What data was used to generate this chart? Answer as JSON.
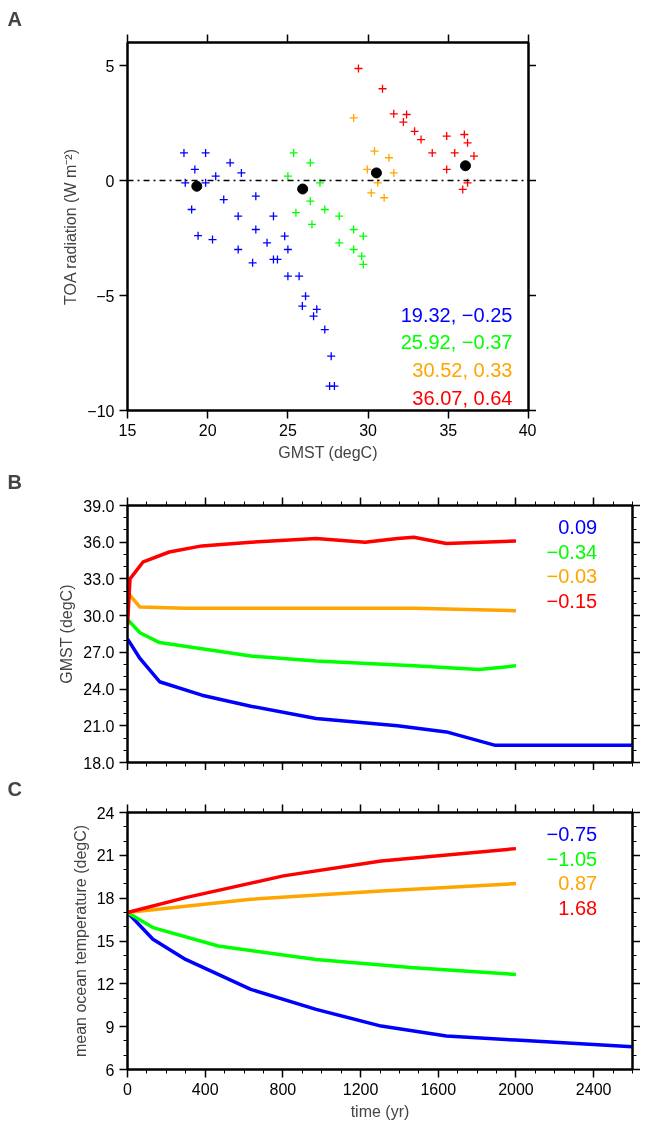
{
  "chart_data": [
    {
      "type": "scatter",
      "title": "A",
      "xlabel": "GMST (degC)",
      "ylabel": "TOA radiation (W m⁻²)",
      "xlim": [
        15,
        40
      ],
      "ylim": [
        -10,
        6
      ],
      "xticks": [
        15,
        20,
        25,
        30,
        35,
        40
      ],
      "yticks": [
        -10,
        -5,
        0,
        5
      ],
      "grid": false,
      "marker": "cross",
      "series": [
        {
          "color": "#0000ff",
          "x": [
            18.52,
            19.87,
            21.4,
            22.1,
            18.6,
            19.0,
            19.4,
            20.3,
            21.9,
            22.8,
            24.1,
            24.8,
            23.0,
            24.1,
            25.0,
            25.7,
            26.1,
            26.8,
            27.3,
            27.7,
            27.9,
            27.6,
            26.6,
            25.9,
            19.87,
            21.0,
            21.9,
            23.0,
            23.7,
            24.35,
            25.0,
            20.5,
            19.2
          ],
          "values": [
            1.2,
            1.2,
            0.77,
            0.33,
            -0.1,
            -1.26,
            -2.4,
            -2.57,
            -3.0,
            -3.58,
            -3.43,
            -2.42,
            -0.68,
            -1.55,
            -3.0,
            -4.16,
            -5.03,
            -5.6,
            -6.48,
            -7.64,
            -8.94,
            -8.94,
            -5.9,
            -5.46,
            -0.1,
            -0.83,
            -1.55,
            -2.13,
            -2.71,
            -3.43,
            -4.16,
            0.19,
            0.48
          ]
        },
        {
          "color": "#00ff00",
          "x": [
            25.36,
            26.4,
            25.0,
            27.0,
            25.5,
            26.5,
            28.2,
            29.1,
            29.7,
            29.6,
            29.7,
            29.1,
            28.2,
            27.3,
            26.4
          ],
          "values": [
            1.2,
            0.77,
            0.19,
            -0.1,
            -1.4,
            -1.91,
            -1.55,
            -2.13,
            -2.42,
            -3.29,
            -3.65,
            -3.0,
            -2.71,
            -1.26,
            -0.9
          ]
        },
        {
          "color": "#ffa500",
          "x": [
            30.4,
            29.95,
            31.6,
            31.3,
            30.2,
            31.0,
            29.1,
            30.6
          ],
          "values": [
            1.28,
            0.48,
            0.33,
            0.99,
            -0.54,
            -0.75,
            2.72,
            -0.1
          ]
        },
        {
          "color": "#ff0000",
          "x": [
            29.4,
            30.9,
            31.6,
            32.4,
            32.2,
            32.9,
            33.3,
            34.9,
            36.2,
            36.0,
            36.6,
            36.2,
            35.9,
            34.9,
            34.0,
            35.4
          ],
          "values": [
            4.87,
            3.99,
            2.9,
            2.87,
            2.54,
            2.14,
            1.78,
            1.93,
            1.64,
            2.0,
            1.06,
            -0.1,
            -0.39,
            0.48,
            1.2,
            1.2
          ]
        },
        {
          "color": "#000000",
          "marker": "circle",
          "x": [
            19.32,
            25.92,
            30.52,
            36.07
          ],
          "values": [
            -0.25,
            -0.37,
            0.33,
            0.64
          ]
        }
      ],
      "ref_lines": [
        {
          "axis": "y",
          "value": 0,
          "color": "#000000",
          "line_style": "dashdot"
        }
      ],
      "annotations": [
        "19.32, −0.25",
        "25.92, −0.37",
        "30.52, 0.33",
        "36.07, 0.64"
      ]
    },
    {
      "type": "line",
      "title": "B",
      "ylabel": "GMST (degC)",
      "xlim": [
        0,
        2600
      ],
      "ylim": [
        18,
        39
      ],
      "xticks": [
        0,
        400,
        800,
        1200,
        1600,
        2000,
        2400
      ],
      "yticks": [
        {
          "value": 18,
          "label": "18.0"
        },
        {
          "value": 21,
          "label": "21.0"
        },
        {
          "value": 24,
          "label": "24.0"
        },
        {
          "value": 27,
          "label": "27.0"
        },
        {
          "value": 30,
          "label": "30.0"
        },
        {
          "value": 33,
          "label": "33.0"
        },
        {
          "value": 36,
          "label": "36.0"
        },
        {
          "value": 39,
          "label": "39.0"
        }
      ],
      "tick_labels": "y",
      "grid": false,
      "series": [
        {
          "color": "#0000ff",
          "x": [
            0,
            64,
            165,
            383,
            635,
            971,
            1390,
            1642,
            1894,
            2146,
            2600
          ],
          "values": [
            28.1,
            26.5,
            24.6,
            23.5,
            22.6,
            21.6,
            21.0,
            20.5,
            19.4,
            19.4,
            19.4
          ]
        },
        {
          "color": "#00ff00",
          "x": [
            0,
            64,
            165,
            383,
            635,
            971,
            1474,
            1810,
            2000
          ],
          "values": [
            29.7,
            28.6,
            27.8,
            27.3,
            26.7,
            26.3,
            25.9,
            25.6,
            25.9
          ]
        },
        {
          "color": "#ffa500",
          "x": [
            0,
            64,
            299,
            803,
            1474,
            2000
          ],
          "values": [
            31.9,
            30.7,
            30.6,
            30.6,
            30.6,
            30.4
          ]
        },
        {
          "color": "#ff0000",
          "x": [
            0,
            13,
            81,
            215,
            383,
            635,
            971,
            1223,
            1390,
            1474,
            1642,
            2000
          ],
          "values": [
            29.2,
            33.0,
            34.4,
            35.2,
            35.7,
            36.0,
            36.3,
            36.0,
            36.3,
            36.4,
            35.9,
            36.1
          ]
        }
      ],
      "annotations": [
        "0.09",
        "−0.34",
        "−0.03",
        "−0.15"
      ]
    },
    {
      "type": "line",
      "title": "C",
      "xlabel": "time (yr)",
      "ylabel": "mean ocean temperature (degC)",
      "xlim": [
        0,
        2600
      ],
      "ylim": [
        6,
        24
      ],
      "xticks": [
        0,
        400,
        800,
        1200,
        1600,
        2000,
        2400
      ],
      "yticks": [
        6,
        9,
        12,
        15,
        18,
        21,
        24
      ],
      "grid": false,
      "series": [
        {
          "color": "#0000ff",
          "x": [
            0,
            131,
            299,
            635,
            971,
            1306,
            1642,
            2000,
            2600
          ],
          "values": [
            17,
            15.12,
            13.71,
            11.61,
            10.21,
            9.04,
            8.34,
            8.06,
            7.59
          ]
        },
        {
          "color": "#00ff00",
          "x": [
            0,
            131,
            467,
            971,
            1474,
            2000
          ],
          "values": [
            17,
            15.94,
            14.65,
            13.7,
            13.13,
            12.66
          ]
        },
        {
          "color": "#ffa500",
          "x": [
            0,
            635,
            1306,
            2000
          ],
          "values": [
            17,
            17.92,
            18.5,
            19.02
          ]
        },
        {
          "color": "#ff0000",
          "x": [
            0,
            299,
            803,
            1306,
            2000
          ],
          "values": [
            17,
            18.04,
            19.56,
            20.6,
            21.47
          ]
        }
      ],
      "annotations": [
        "−0.75",
        "−1.05",
        "0.87",
        "1.68"
      ]
    }
  ]
}
